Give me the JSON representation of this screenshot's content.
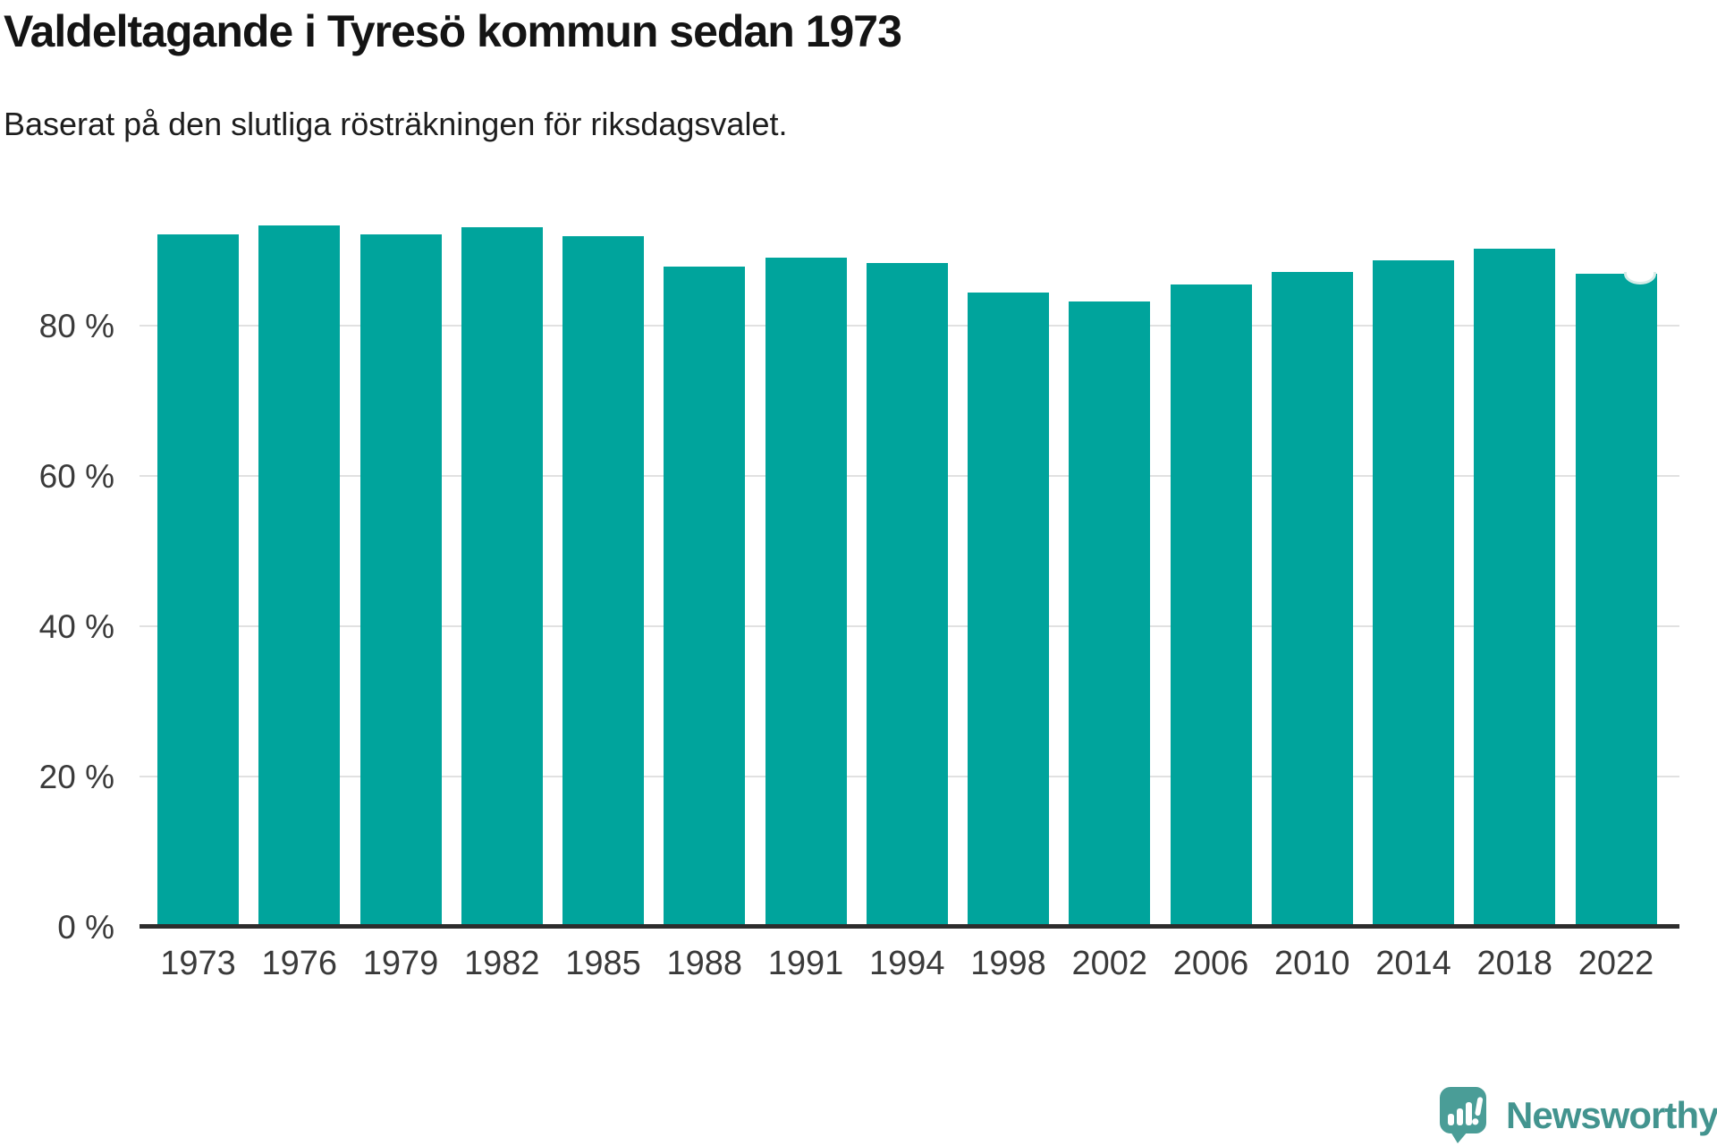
{
  "chart_data": {
    "type": "bar",
    "title": "Valdeltagande i Tyresö kommun sedan 1973",
    "subtitle": "Baserat på den slutliga rösträkningen för riksdagsvalet.",
    "categories": [
      "1973",
      "1976",
      "1979",
      "1982",
      "1985",
      "1988",
      "1991",
      "1994",
      "1998",
      "2002",
      "2006",
      "2010",
      "2014",
      "2018",
      "2022"
    ],
    "values": [
      92.1,
      93.3,
      92.2,
      93.1,
      91.9,
      87.9,
      89.0,
      88.3,
      84.4,
      83.2,
      85.5,
      87.1,
      88.7,
      90.2,
      86.9
    ],
    "unit": "%",
    "xlabel": "",
    "ylabel": "",
    "ylim": [
      0,
      100
    ],
    "y_ticks": [
      {
        "value": 0,
        "label": "0 %"
      },
      {
        "value": 20,
        "label": "20 %"
      },
      {
        "value": 40,
        "label": "40 %"
      },
      {
        "value": 60,
        "label": "60 %"
      },
      {
        "value": 80,
        "label": "80 %"
      }
    ],
    "grid": "horizontal",
    "legend": "none",
    "bar_color": "#00a49c",
    "highlight": {
      "category": "2022",
      "marker": "notch-top-right"
    }
  },
  "branding": {
    "logo_text": "Newsworthy",
    "logo_text_color": "#43948f",
    "logo_box_color": "#4a9d97"
  },
  "colors": {
    "axis_line": "#2d2d2d",
    "gridline": "#e1e1e1",
    "tick_label": "#3a3a3a",
    "notch_rim": "#d6ece8"
  }
}
